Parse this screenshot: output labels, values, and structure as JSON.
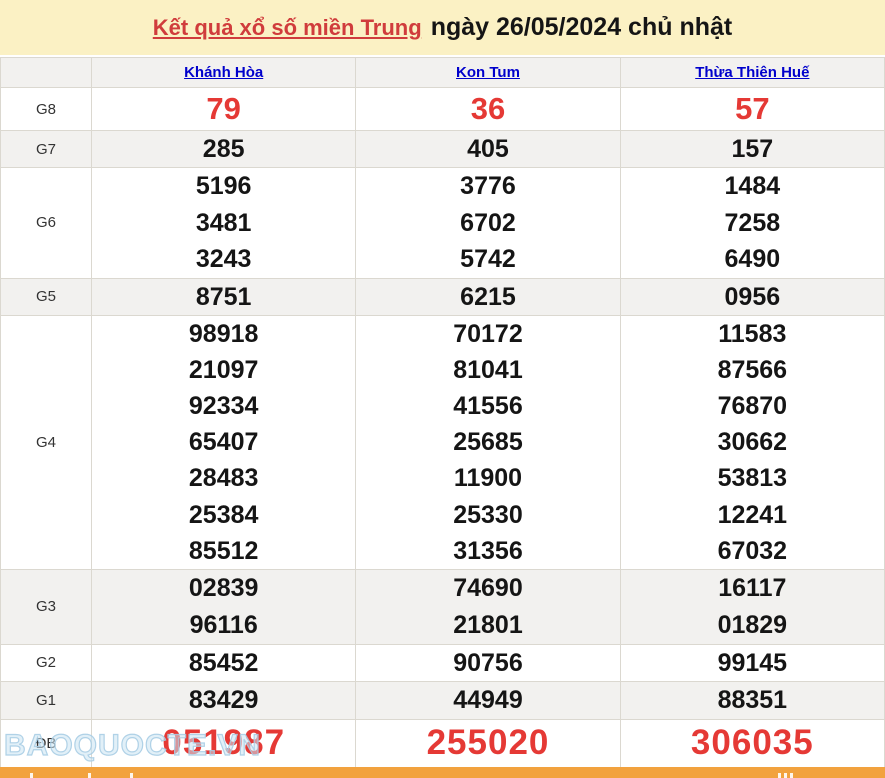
{
  "title": {
    "link": "Kết quả xổ số miền Trung",
    "rest": "ngày 26/05/2024 chủ nhật"
  },
  "columns": [
    "Khánh Hòa",
    "Kon Tum",
    "Thừa Thiên Huế"
  ],
  "rows": [
    {
      "label": "G8",
      "cells": [
        [
          "79"
        ],
        [
          "36"
        ],
        [
          "57"
        ]
      ]
    },
    {
      "label": "G7",
      "cells": [
        [
          "285"
        ],
        [
          "405"
        ],
        [
          "157"
        ]
      ]
    },
    {
      "label": "G6",
      "cells": [
        [
          "5196",
          "3481",
          "3243"
        ],
        [
          "3776",
          "6702",
          "5742"
        ],
        [
          "1484",
          "7258",
          "6490"
        ]
      ]
    },
    {
      "label": "G5",
      "cells": [
        [
          "8751"
        ],
        [
          "6215"
        ],
        [
          "0956"
        ]
      ]
    },
    {
      "label": "G4",
      "cells": [
        [
          "98918",
          "21097",
          "92334",
          "65407",
          "28483",
          "25384",
          "85512"
        ],
        [
          "70172",
          "81041",
          "41556",
          "25685",
          "11900",
          "25330",
          "31356"
        ],
        [
          "11583",
          "87566",
          "76870",
          "30662",
          "53813",
          "12241",
          "67032"
        ]
      ]
    },
    {
      "label": "G3",
      "cells": [
        [
          "02839",
          "96116"
        ],
        [
          "74690",
          "21801"
        ],
        [
          "16117",
          "01829"
        ]
      ]
    },
    {
      "label": "G2",
      "cells": [
        [
          "85452"
        ],
        [
          "90756"
        ],
        [
          "99145"
        ]
      ]
    },
    {
      "label": "G1",
      "cells": [
        [
          "83429"
        ],
        [
          "44949"
        ],
        [
          "88351"
        ]
      ]
    },
    {
      "label": "ĐB",
      "cells": [
        [
          "051987"
        ],
        [
          "255020"
        ],
        [
          "306035"
        ]
      ]
    }
  ],
  "watermark": "BAOQUOCTE.VN",
  "colors": {
    "title_bg": "#fbf1c4",
    "title_link_red": "#d03c3c",
    "number_red": "#e53935",
    "header_link_blue": "#0000cc",
    "row_alt_bg": "#f2f1ef",
    "border": "#dbd8d0",
    "orange_bar": "#f2a23e"
  }
}
